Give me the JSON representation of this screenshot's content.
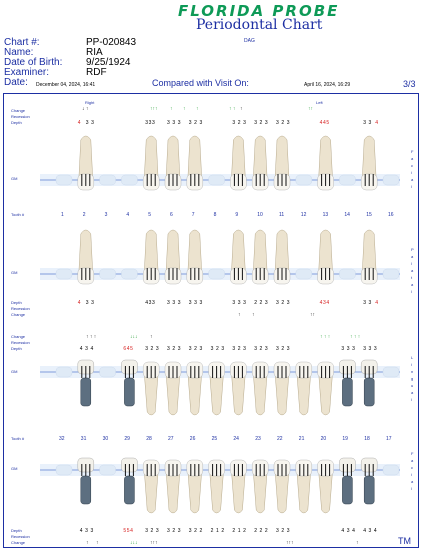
{
  "header": {
    "logo": "FLORIDA PROBE",
    "title": "Periodontal Chart",
    "subtitle": "DAG",
    "chart_label": "Chart #:",
    "chart_value": "PP-020843",
    "name_label": "Name:",
    "name_value": "RIA",
    "dob_label": "Date of Birth:",
    "dob_value": "9/25/1924",
    "examiner_label": "Examiner:",
    "examiner_value": "RDF",
    "date_label": "Date:",
    "date_value": "December 04, 2024, 16:41",
    "compared_label": "Compared with Visit On:",
    "compared_value": "April 16, 2024, 16:29",
    "page": "3/3"
  },
  "labels": {
    "change": "Change",
    "recession": "Recession",
    "depth": "Depth",
    "right": "Right",
    "left": "Left",
    "gm": "GM",
    "tooth": "Tooth #",
    "facial": "Facial",
    "palatal": "Palatal",
    "lingual": "Lingual",
    "tm": "TM"
  },
  "upper_teeth": [
    "1",
    "2",
    "3",
    "4",
    "5",
    "6",
    "7",
    "8",
    "9",
    "10",
    "11",
    "12",
    "13",
    "14",
    "15",
    "16"
  ],
  "lower_teeth": [
    "32",
    "31",
    "30",
    "29",
    "28",
    "27",
    "26",
    "25",
    "24",
    "23",
    "22",
    "21",
    "20",
    "19",
    "18",
    "17"
  ],
  "upper_facial_depth": [
    {
      "t": "4",
      "r": true
    },
    {
      "t": "3 3",
      "r": false
    },
    {
      "t": "333",
      "r": false
    },
    {
      "t": "3 3 3",
      "r": false
    },
    {
      "t": "3 2 3",
      "r": false
    },
    {
      "t": "3 2 3",
      "r": false
    },
    {
      "t": "3 2 3",
      "r": false
    },
    {
      "t": "3 2 3",
      "r": false
    },
    {
      "t": "445",
      "r": true
    },
    {
      "t": "3 3",
      "r": false
    },
    {
      "t": "4",
      "r": true
    }
  ],
  "upper_palatal_depth": [
    {
      "t": "4",
      "r": true
    },
    {
      "t": "3 3",
      "r": false
    },
    {
      "t": "433",
      "r": false
    },
    {
      "t": "3 3 3",
      "r": false
    },
    {
      "t": "3 3 3",
      "r": false
    },
    {
      "t": "3 3 3",
      "r": false
    },
    {
      "t": "2 2 3",
      "r": false
    },
    {
      "t": "3 2 3",
      "r": false
    },
    {
      "t": "434",
      "r": true
    },
    {
      "t": "3 3",
      "r": false
    },
    {
      "t": "4",
      "r": true
    }
  ],
  "lower_lingual_depth": [
    {
      "t": "4 3 4",
      "r": false
    },
    {
      "t": "645",
      "r": true
    },
    {
      "t": "3 2 3",
      "r": false
    },
    {
      "t": "3 2 3",
      "r": false
    },
    {
      "t": "3 2 3",
      "r": false
    },
    {
      "t": "3 2 3",
      "r": false
    },
    {
      "t": "3 2 3",
      "r": false
    },
    {
      "t": "3 2 3",
      "r": false
    },
    {
      "t": "3 2 3",
      "r": false
    },
    {
      "t": "3 3 3",
      "r": false
    },
    {
      "t": "3 3 3",
      "r": false
    }
  ],
  "lower_facial_depth": [
    {
      "t": "4 3 3",
      "r": false
    },
    {
      "t": "554",
      "r": true
    },
    {
      "t": "3 2 3",
      "r": false
    },
    {
      "t": "3 2 3",
      "r": false
    },
    {
      "t": "3 2 2",
      "r": false
    },
    {
      "t": "2 1 2",
      "r": false
    },
    {
      "t": "2 1 2",
      "r": false
    },
    {
      "t": "2 2 2",
      "r": false
    },
    {
      "t": "3 2 3",
      "r": false
    },
    {
      "t": "4 3 4",
      "r": false
    },
    {
      "t": "4 3 4",
      "r": false
    }
  ]
}
